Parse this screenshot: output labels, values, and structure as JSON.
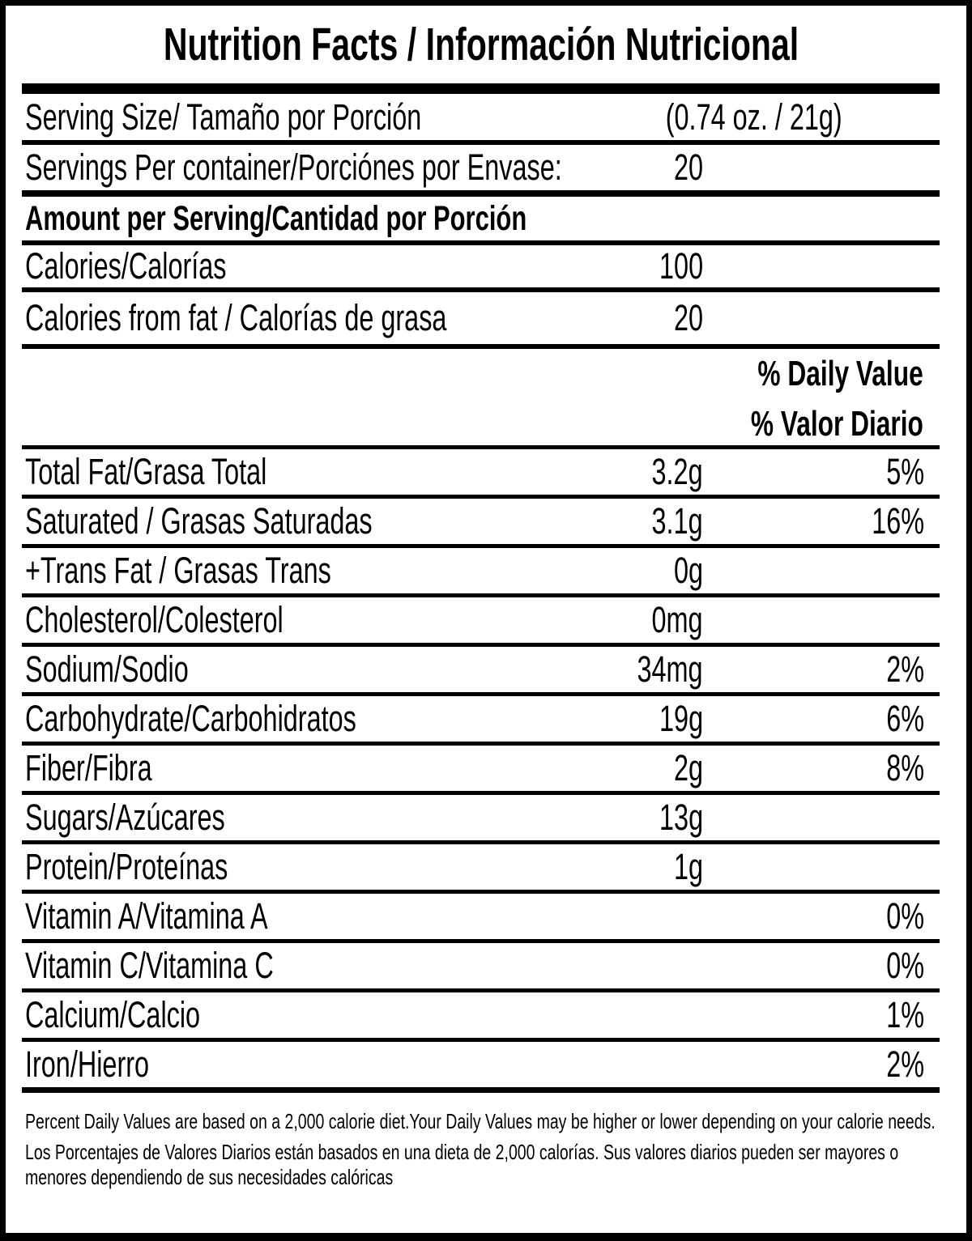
{
  "label": {
    "title": "Nutrition Facts / Información Nutricional",
    "serving_size": {
      "label": "Serving Size/ Tamaño por Porción",
      "value": "(0.74 oz. / 21g)"
    },
    "servings_per_container": {
      "label": "Servings Per container/Porciónes por Envase:",
      "value": "20"
    },
    "amount_per_serving": "Amount per Serving/Cantidad por Porción",
    "calories": {
      "label": "Calories/Calorías",
      "value": "100"
    },
    "calories_from_fat": {
      "label": "Calories from fat / Calorías de grasa",
      "value": "20"
    },
    "daily_value_header": {
      "line1": "% Daily Value",
      "line2": "% Valor Diario"
    },
    "nutrients": [
      {
        "name": "Total Fat/Grasa Total",
        "amount": "3.2g",
        "dv": "5%"
      },
      {
        "name": "Saturated / Grasas Saturadas",
        "amount": "3.1g",
        "dv": "16%"
      },
      {
        "name": "+Trans Fat / Grasas Trans",
        "amount": "0g",
        "dv": ""
      },
      {
        "name": "Cholesterol/Colesterol",
        "amount": "0mg",
        "dv": ""
      },
      {
        "name": "Sodium/Sodio",
        "amount": "34mg",
        "dv": "2%"
      },
      {
        "name": "Carbohydrate/Carbohidratos",
        "amount": "19g",
        "dv": "6%"
      },
      {
        "name": "Fiber/Fibra",
        "amount": "2g",
        "dv": "8%"
      },
      {
        "name": "Sugars/Azúcares",
        "amount": "13g",
        "dv": ""
      },
      {
        "name": "Protein/Proteínas",
        "amount": "1g",
        "dv": ""
      },
      {
        "name": "Vitamin A/Vitamina A",
        "amount": "",
        "dv": "0%"
      },
      {
        "name": "Vitamin C/Vitamina C",
        "amount": "",
        "dv": "0%"
      },
      {
        "name": "Calcium/Calcio",
        "amount": "",
        "dv": "1%"
      },
      {
        "name": "Iron/Hierro",
        "amount": "",
        "dv": "2%"
      }
    ],
    "footnote_en": "Percent Daily Values are based on a 2,000 calorie diet.Your Daily Values may be higher or lower depending on your calorie needs.",
    "footnote_es": "Los Porcentajes de Valores Diarios están basados en una dieta de 2,000 calorías. Sus valores diarios pueden ser mayores o menores dependiendo de sus necesidades calóricas",
    "colors": {
      "ink": "#000000",
      "paper": "#ffffff"
    }
  }
}
